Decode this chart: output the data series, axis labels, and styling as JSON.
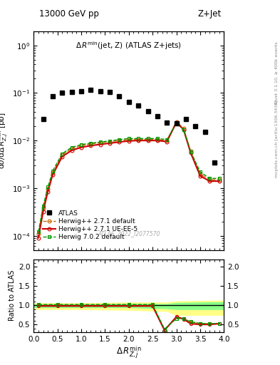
{
  "title_left": "13000 GeV pp",
  "title_right": "Z+Jet",
  "annotation": "$\\Delta\\,R^{\\mathrm{min}}$(jet, Z) (ATLAS Z+jets)",
  "watermark": "ATLAS_2022_I2077570",
  "right_label": "Rivet 3.1.10, ≥ 400k events",
  "right_label2": "mcplots.cern.ch [arXiv:1306.3436]",
  "ylabel_main": "$\\mathrm{d}\\sigma/\\mathrm{d}\\Delta\\,R^{\\mathrm{min}}_{Z,j}$ [pb]",
  "ylabel_ratio": "Ratio to ATLAS",
  "xlabel": "$\\Delta\\,R^{\\mathrm{min}}_{Z,j}$",
  "atlas_x": [
    0.2,
    0.4,
    0.6,
    0.8,
    1.0,
    1.2,
    1.4,
    1.6,
    1.8,
    2.0,
    2.2,
    2.4,
    2.6,
    2.8,
    3.0,
    3.2,
    3.4,
    3.6,
    3.8
  ],
  "atlas_y": [
    0.028,
    0.085,
    0.1,
    0.105,
    0.11,
    0.115,
    0.11,
    0.105,
    0.085,
    0.065,
    0.055,
    0.042,
    0.032,
    0.024,
    0.023,
    0.028,
    0.02,
    0.015,
    0.0035
  ],
  "hw271def_x": [
    0.1,
    0.2,
    0.3,
    0.4,
    0.6,
    0.8,
    1.0,
    1.2,
    1.4,
    1.6,
    1.8,
    2.0,
    2.2,
    2.4,
    2.6,
    2.8,
    3.0,
    3.15,
    3.3,
    3.5,
    3.7,
    3.9
  ],
  "hw271def_y": [
    0.00011,
    0.00038,
    0.00095,
    0.0021,
    0.005,
    0.0068,
    0.0078,
    0.0085,
    0.009,
    0.0095,
    0.01,
    0.0105,
    0.0105,
    0.0105,
    0.0105,
    0.01,
    0.025,
    0.018,
    0.006,
    0.002,
    0.0015,
    0.0015
  ],
  "hw271ue_x": [
    0.1,
    0.2,
    0.3,
    0.4,
    0.6,
    0.8,
    1.0,
    1.2,
    1.4,
    1.6,
    1.8,
    2.0,
    2.2,
    2.4,
    2.6,
    2.8,
    3.0,
    3.15,
    3.3,
    3.5,
    3.7,
    3.9
  ],
  "hw271ue_y": [
    9e-05,
    0.00032,
    0.00085,
    0.0019,
    0.0046,
    0.0062,
    0.0072,
    0.0078,
    0.0083,
    0.0088,
    0.0093,
    0.0098,
    0.01,
    0.01,
    0.01,
    0.0095,
    0.024,
    0.017,
    0.0055,
    0.0018,
    0.0014,
    0.0014
  ],
  "hw702def_x": [
    0.1,
    0.2,
    0.3,
    0.4,
    0.6,
    0.8,
    1.0,
    1.2,
    1.4,
    1.6,
    1.8,
    2.0,
    2.2,
    2.4,
    2.6,
    2.8,
    3.0,
    3.15,
    3.3,
    3.5,
    3.7,
    3.9
  ],
  "hw702def_y": [
    0.00012,
    0.00042,
    0.00105,
    0.0023,
    0.0053,
    0.0072,
    0.0082,
    0.0088,
    0.0093,
    0.0098,
    0.0105,
    0.011,
    0.011,
    0.011,
    0.011,
    0.0105,
    0.023,
    0.017,
    0.0058,
    0.0022,
    0.0016,
    0.0016
  ],
  "ratio_hw271def_x": [
    0.1,
    0.5,
    1.0,
    1.5,
    2.0,
    2.5,
    2.75,
    3.0,
    3.15,
    3.3,
    3.5,
    3.7,
    3.9
  ],
  "ratio_hw271def_y": [
    1.0,
    1.0,
    1.0,
    1.0,
    1.0,
    1.0,
    0.35,
    0.7,
    0.65,
    0.56,
    0.52,
    0.52,
    0.53
  ],
  "ratio_hw271ue_x": [
    0.1,
    0.5,
    1.0,
    1.5,
    2.0,
    2.5,
    2.75,
    3.0,
    3.15,
    3.3,
    3.5,
    3.7,
    3.9
  ],
  "ratio_hw271ue_y": [
    0.98,
    0.98,
    0.98,
    0.98,
    0.98,
    0.98,
    0.35,
    0.7,
    0.64,
    0.52,
    0.5,
    0.5,
    0.52
  ],
  "ratio_hw702def_x": [
    0.1,
    0.5,
    1.0,
    1.5,
    2.0,
    2.5,
    2.75,
    3.0,
    3.15,
    3.3,
    3.5,
    3.7,
    3.9
  ],
  "ratio_hw702def_y": [
    1.02,
    1.02,
    1.02,
    1.02,
    1.02,
    1.02,
    0.38,
    0.65,
    0.65,
    0.57,
    0.53,
    0.52,
    0.53
  ],
  "band_yellow_x": [
    0.0,
    1.0,
    2.0,
    2.8,
    3.0,
    4.0
  ],
  "band_yellow_lo": [
    0.9,
    0.9,
    0.88,
    0.85,
    0.75,
    0.75
  ],
  "band_yellow_hi": [
    1.05,
    1.05,
    1.07,
    1.07,
    1.1,
    1.12
  ],
  "band_green_x": [
    0.0,
    1.0,
    2.0,
    2.8,
    3.0,
    4.0
  ],
  "band_green_lo": [
    0.95,
    0.95,
    0.95,
    0.92,
    0.9,
    0.9
  ],
  "band_green_hi": [
    1.02,
    1.02,
    1.03,
    1.03,
    1.06,
    1.08
  ],
  "color_atlas": "#000000",
  "color_hw271def": "#cc6600",
  "color_hw271ue": "#cc0000",
  "color_hw702def": "#009900",
  "color_yellow": "#ffff88",
  "color_green_band": "#88ff88",
  "xlim": [
    0,
    4
  ],
  "ylim_main": [
    5e-05,
    2.0
  ],
  "ylim_ratio": [
    0.3,
    2.2
  ],
  "ratio_yticks": [
    0.5,
    1.0,
    1.5,
    2.0
  ]
}
